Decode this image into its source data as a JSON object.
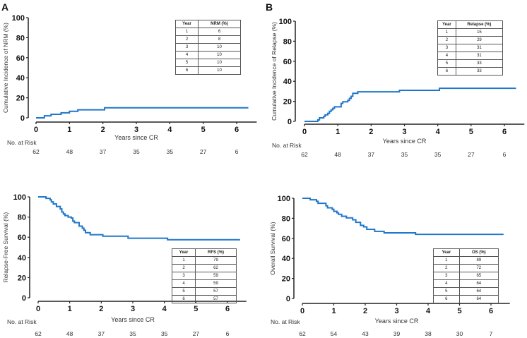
{
  "chart_data": [
    {
      "panel_label": "A",
      "type": "line",
      "step": true,
      "xlabel": "Years since CR",
      "ylabel": "Cumulative Incidence of NRM (%)",
      "xlim": [
        0,
        6.4
      ],
      "ylim": [
        0,
        100
      ],
      "xticks": [
        "0",
        "1",
        "2",
        "3",
        "4",
        "5",
        "6"
      ],
      "yticks": [
        "0",
        "20",
        "40",
        "60",
        "80",
        "100"
      ],
      "color": "#1f77c9",
      "x": [
        0,
        0.25,
        0.45,
        0.75,
        1.0,
        1.25,
        2.05,
        6.35
      ],
      "y": [
        0,
        2,
        3.5,
        5,
        6.5,
        8,
        10,
        10
      ],
      "risk_label": "No. at Risk",
      "at_risk": [
        "62",
        "48",
        "37",
        "35",
        "35",
        "27",
        "6"
      ],
      "table": {
        "headers": [
          "Year",
          "NRM (%)"
        ],
        "rows": [
          [
            "1",
            "6"
          ],
          [
            "2",
            "8"
          ],
          [
            "3",
            "10"
          ],
          [
            "4",
            "10"
          ],
          [
            "5",
            "10"
          ],
          [
            "6",
            "10"
          ]
        ]
      }
    },
    {
      "panel_label": "B",
      "type": "line",
      "step": true,
      "xlabel": "Years since CR",
      "ylabel": "Cumulative Incidence of Relapse (%)",
      "xlim": [
        0,
        6.4
      ],
      "ylim": [
        0,
        100
      ],
      "xticks": [
        "0",
        "1",
        "2",
        "3",
        "4",
        "5",
        "6"
      ],
      "yticks": [
        "0",
        "20",
        "40",
        "60",
        "80",
        "100"
      ],
      "color": "#1f77c9",
      "x": [
        0,
        0.4,
        0.45,
        0.58,
        0.62,
        0.7,
        0.75,
        0.8,
        0.85,
        0.9,
        1.1,
        1.15,
        1.3,
        1.35,
        1.4,
        1.45,
        1.6,
        2.85,
        4.05,
        6.35
      ],
      "y": [
        0,
        1.5,
        3.5,
        5,
        6.5,
        8,
        10,
        11.5,
        13,
        14.5,
        18,
        19.5,
        21,
        23,
        25,
        28,
        29.5,
        31,
        33,
        33
      ],
      "risk_label": "No. at Risk",
      "at_risk": [
        "62",
        "48",
        "37",
        "35",
        "35",
        "27",
        "6"
      ],
      "table": {
        "headers": [
          "Year",
          "Relapse (%)"
        ],
        "rows": [
          [
            "1",
            "15"
          ],
          [
            "2",
            "29"
          ],
          [
            "3",
            "31"
          ],
          [
            "4",
            "31"
          ],
          [
            "5",
            "33"
          ],
          [
            "6",
            "33"
          ]
        ]
      }
    },
    {
      "panel_label": "",
      "type": "line",
      "step": true,
      "xlabel": "Years since CR",
      "ylabel": "Relapse-Free Survival (%)",
      "xlim": [
        0,
        6.4
      ],
      "ylim": [
        0,
        100
      ],
      "xticks": [
        "0",
        "1",
        "2",
        "3",
        "4",
        "5",
        "6"
      ],
      "yticks": [
        "0",
        "20",
        "40",
        "60",
        "80",
        "100"
      ],
      "color": "#1f77c9",
      "x": [
        0,
        0.25,
        0.38,
        0.42,
        0.48,
        0.58,
        0.7,
        0.75,
        0.8,
        0.85,
        0.95,
        1.05,
        1.1,
        1.15,
        1.3,
        1.4,
        1.45,
        1.5,
        1.65,
        2.05,
        2.85,
        4.1,
        6.4
      ],
      "y": [
        100,
        98.5,
        97,
        95,
        93,
        90.5,
        88,
        85,
        83,
        81.5,
        80,
        79,
        76,
        74.5,
        71,
        69,
        67,
        64.5,
        62.5,
        61,
        59,
        57.5,
        57.5
      ],
      "risk_label": "No. at Risk",
      "at_risk": [
        "62",
        "48",
        "37",
        "35",
        "35",
        "27",
        "6"
      ],
      "table": {
        "headers": [
          "Year",
          "RFS (%)"
        ],
        "rows": [
          [
            "1",
            "79"
          ],
          [
            "2",
            "62"
          ],
          [
            "3",
            "59"
          ],
          [
            "4",
            "59"
          ],
          [
            "5",
            "57"
          ],
          [
            "6",
            "57"
          ]
        ]
      }
    },
    {
      "panel_label": "",
      "type": "line",
      "step": true,
      "xlabel": "Years since CR",
      "ylabel": "Overall Survival (%)",
      "xlim": [
        0,
        6.4
      ],
      "ylim": [
        0,
        100
      ],
      "xticks": [
        "0",
        "1",
        "2",
        "3",
        "4",
        "5",
        "6"
      ],
      "yticks": [
        "0",
        "20",
        "40",
        "60",
        "80",
        "100"
      ],
      "color": "#1f77c9",
      "x": [
        0,
        0.25,
        0.45,
        0.5,
        0.75,
        0.8,
        0.95,
        1.0,
        1.1,
        1.15,
        1.25,
        1.4,
        1.6,
        1.7,
        1.85,
        1.95,
        2.05,
        2.3,
        2.6,
        3.6,
        6.4
      ],
      "y": [
        100,
        98.5,
        97,
        95,
        92.5,
        90.5,
        89,
        87,
        85.5,
        84,
        82,
        80.5,
        78.5,
        76,
        73,
        71.5,
        69,
        67,
        65.5,
        64,
        64
      ],
      "risk_label": "No. at Risk",
      "at_risk": [
        "62",
        "54",
        "43",
        "39",
        "38",
        "30",
        "7"
      ],
      "table": {
        "headers": [
          "Year",
          "OS (%)"
        ],
        "rows": [
          [
            "1",
            "89"
          ],
          [
            "2",
            "72"
          ],
          [
            "3",
            "65"
          ],
          [
            "4",
            "64"
          ],
          [
            "5",
            "64"
          ],
          [
            "6",
            "64"
          ]
        ]
      }
    }
  ]
}
